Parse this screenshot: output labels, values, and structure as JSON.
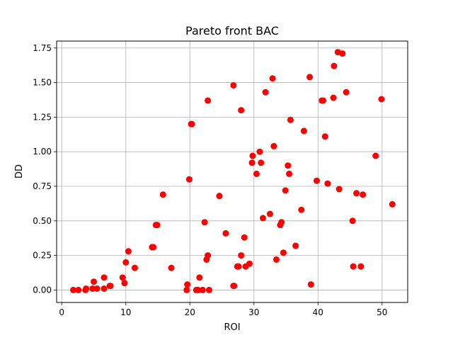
{
  "chart_data": {
    "type": "scatter",
    "title": "Pareto front BAC",
    "xlabel": "ROI",
    "ylabel": "DD",
    "xlim": [
      -0.8,
      54.0
    ],
    "ylim": [
      -0.09,
      1.8
    ],
    "xticks": [
      0,
      10,
      20,
      30,
      40,
      50
    ],
    "yticks": [
      0.0,
      0.25,
      0.5,
      0.75,
      1.0,
      1.25,
      1.5,
      1.75
    ],
    "xtick_labels": [
      "0",
      "10",
      "20",
      "30",
      "40",
      "50"
    ],
    "ytick_labels": [
      "0.00",
      "0.25",
      "0.50",
      "0.75",
      "1.00",
      "1.25",
      "1.50",
      "1.75"
    ],
    "grid": true,
    "color": "#ff0000",
    "points": [
      [
        1.8,
        0.0
      ],
      [
        2.6,
        0.0
      ],
      [
        3.7,
        0.0
      ],
      [
        3.8,
        0.01
      ],
      [
        4.8,
        0.01
      ],
      [
        5.0,
        0.06
      ],
      [
        5.5,
        0.01
      ],
      [
        6.6,
        0.01
      ],
      [
        6.6,
        0.09
      ],
      [
        7.5,
        0.03
      ],
      [
        7.6,
        0.03
      ],
      [
        9.5,
        0.09
      ],
      [
        9.8,
        0.05
      ],
      [
        10.0,
        0.2
      ],
      [
        10.4,
        0.28
      ],
      [
        11.4,
        0.16
      ],
      [
        14.1,
        0.31
      ],
      [
        14.3,
        0.31
      ],
      [
        14.7,
        0.47
      ],
      [
        14.9,
        0.47
      ],
      [
        15.8,
        0.69
      ],
      [
        17.1,
        0.16
      ],
      [
        19.5,
        0.0
      ],
      [
        19.6,
        0.04
      ],
      [
        19.9,
        0.8
      ],
      [
        20.2,
        1.2
      ],
      [
        20.3,
        1.2
      ],
      [
        21.0,
        0.0
      ],
      [
        21.3,
        0.0
      ],
      [
        21.5,
        0.09
      ],
      [
        22.0,
        0.0
      ],
      [
        22.3,
        0.49
      ],
      [
        22.6,
        0.22
      ],
      [
        22.8,
        0.25
      ],
      [
        22.8,
        1.37
      ],
      [
        23.0,
        0.0
      ],
      [
        24.6,
        0.68
      ],
      [
        25.6,
        0.41
      ],
      [
        26.8,
        0.03
      ],
      [
        26.8,
        1.48
      ],
      [
        26.9,
        0.03
      ],
      [
        27.4,
        0.17
      ],
      [
        27.6,
        0.17
      ],
      [
        28.0,
        0.25
      ],
      [
        28.0,
        1.3
      ],
      [
        28.5,
        0.38
      ],
      [
        28.7,
        0.17
      ],
      [
        29.3,
        0.19
      ],
      [
        29.7,
        0.92
      ],
      [
        29.8,
        0.97
      ],
      [
        30.4,
        0.84
      ],
      [
        30.9,
        1.0
      ],
      [
        31.1,
        0.92
      ],
      [
        31.4,
        0.52
      ],
      [
        31.8,
        1.43
      ],
      [
        32.5,
        0.55
      ],
      [
        32.9,
        1.53
      ],
      [
        33.1,
        1.04
      ],
      [
        33.5,
        0.22
      ],
      [
        34.1,
        0.47
      ],
      [
        34.3,
        0.49
      ],
      [
        34.6,
        0.27
      ],
      [
        34.9,
        0.72
      ],
      [
        35.3,
        0.9
      ],
      [
        35.5,
        0.84
      ],
      [
        35.7,
        1.23
      ],
      [
        36.5,
        0.32
      ],
      [
        37.4,
        0.58
      ],
      [
        37.8,
        1.15
      ],
      [
        38.7,
        1.54
      ],
      [
        38.9,
        0.04
      ],
      [
        39.8,
        0.79
      ],
      [
        40.6,
        1.37
      ],
      [
        40.8,
        1.37
      ],
      [
        41.1,
        1.11
      ],
      [
        41.5,
        0.77
      ],
      [
        42.4,
        1.39
      ],
      [
        42.5,
        1.62
      ],
      [
        43.1,
        1.72
      ],
      [
        43.3,
        0.73
      ],
      [
        43.8,
        1.71
      ],
      [
        44.4,
        1.43
      ],
      [
        45.4,
        0.5
      ],
      [
        45.5,
        0.17
      ],
      [
        46.0,
        0.7
      ],
      [
        46.7,
        0.17
      ],
      [
        47.0,
        0.69
      ],
      [
        49.0,
        0.97
      ],
      [
        49.9,
        1.38
      ],
      [
        51.6,
        0.62
      ]
    ]
  }
}
